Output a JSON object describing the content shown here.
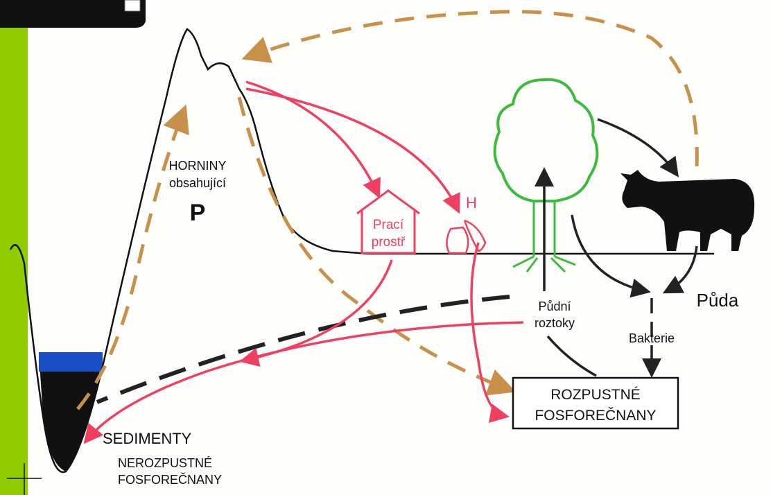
{
  "labels": {
    "rocks_line1": "HORNINY",
    "rocks_line2": "obsahující",
    "rocks_symbol": "P",
    "detergent_line1": "Prací",
    "detergent_line2": "prostř",
    "fertilizer_symbol": "H",
    "soil_solution_line1": "Půdní",
    "soil_solution_line2": "roztoky",
    "soil": "Půda",
    "bacteria": "Bakterie",
    "soluble_line1": "ROZPUSTNÉ",
    "soluble_line2": "FOSFOREČNANY",
    "sediments": "SEDIMENTY",
    "insoluble_line1": "NEROZPUSTNÉ",
    "insoluble_line2": "FOSFOREČNANY"
  }
}
